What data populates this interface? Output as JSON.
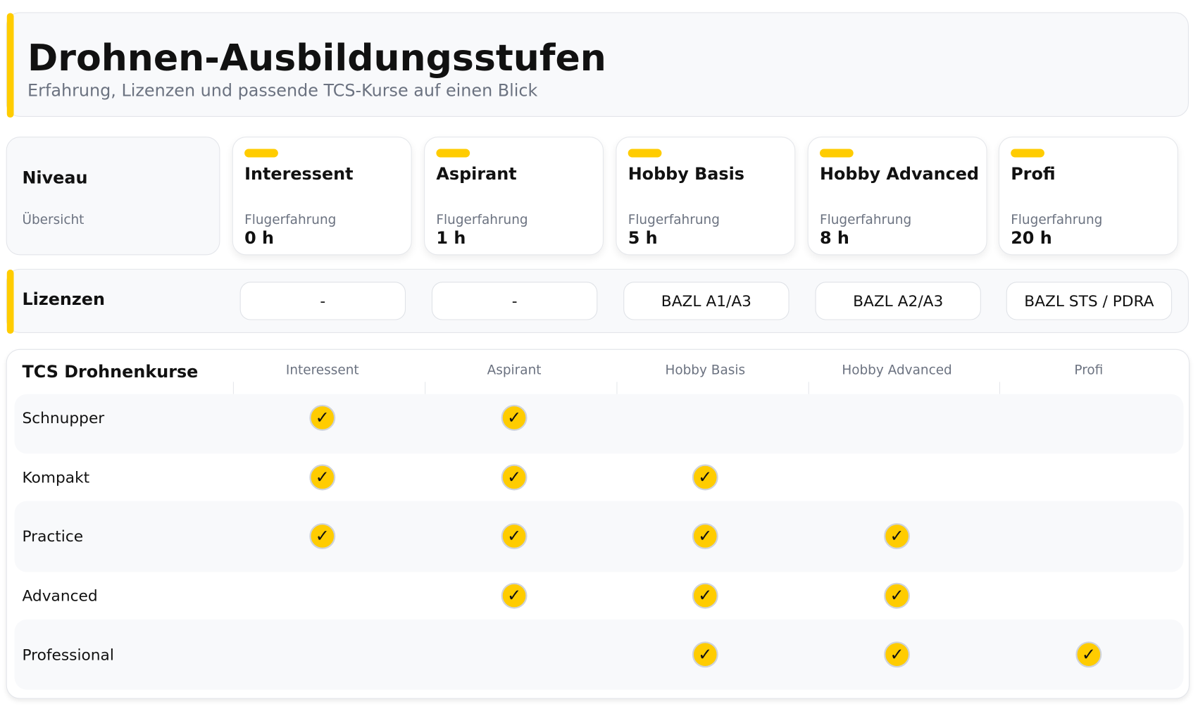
{
  "header": {
    "title": "Drohnen-Ausbildungsstufen",
    "subtitle": "Erfahrung, Lizenzen und passende TCS-Kurse auf einen Blick"
  },
  "niveau": {
    "title": "Niveau",
    "subtitle": "Übersicht"
  },
  "levels": [
    {
      "name": "Interessent",
      "label": "Flugerfahrung",
      "value": "0 h"
    },
    {
      "name": "Aspirant",
      "label": "Flugerfahrung",
      "value": "1 h"
    },
    {
      "name": "Hobby Basis",
      "label": "Flugerfahrung",
      "value": "5 h"
    },
    {
      "name": "Hobby Advanced",
      "label": "Flugerfahrung",
      "value": "8 h"
    },
    {
      "name": "Profi",
      "label": "Flugerfahrung",
      "value": "20 h"
    }
  ],
  "licenses": {
    "title": "Lizenzen",
    "items": [
      "-",
      "-",
      "BAZL A1/A3",
      "BAZL A2/A3",
      "BAZL STS / PDRA"
    ]
  },
  "courses": {
    "title": "TCS Drohnenkurse",
    "columns": [
      "Interessent",
      "Aspirant",
      "Hobby Basis",
      "Hobby Advanced",
      "Profi"
    ],
    "check_glyph": "✓",
    "rows": [
      {
        "name": "Schnupper",
        "checks": [
          true,
          true,
          false,
          false,
          false
        ]
      },
      {
        "name": "Kompakt",
        "checks": [
          true,
          true,
          true,
          false,
          false
        ]
      },
      {
        "name": "Practice",
        "checks": [
          true,
          true,
          true,
          true,
          false
        ]
      },
      {
        "name": "Advanced",
        "checks": [
          false,
          true,
          true,
          true,
          false
        ]
      },
      {
        "name": "Professional",
        "checks": [
          false,
          false,
          true,
          true,
          true
        ]
      }
    ]
  },
  "colors": {
    "accent": "#ffcc00",
    "panel": "#f8f9fb",
    "muted": "#6b7280"
  }
}
